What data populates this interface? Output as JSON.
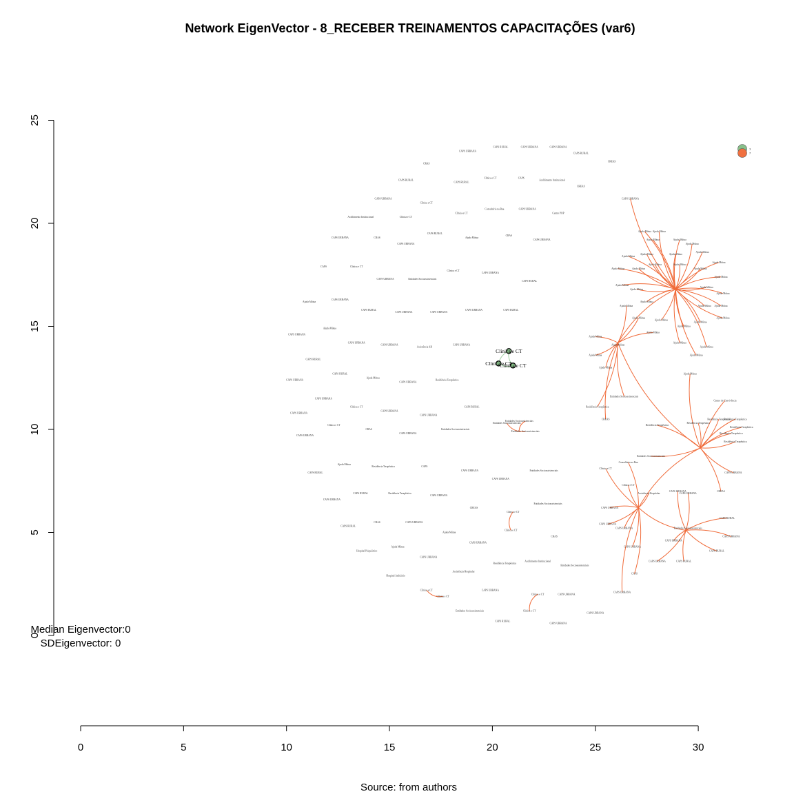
{
  "chart_data": {
    "type": "network",
    "title": "Network EigenVector - 8_RECEBER TREINAMENTOS CAPACITAÇÕES (var6)",
    "caption": "Source: from authors",
    "stats": [
      "Median Eigenvector:0",
      "SDEigenvector: 0"
    ],
    "x_axis": {
      "ticks": [
        0,
        5,
        10,
        15,
        20,
        25,
        30
      ],
      "range": [
        0,
        30
      ]
    },
    "y_axis": {
      "ticks": [
        0,
        5,
        10,
        15,
        20,
        25
      ],
      "range": [
        0,
        25
      ]
    },
    "legend": {
      "position": "top-right",
      "entries": [
        {
          "label": "1",
          "color": "#88c08a"
        },
        {
          "label": "7",
          "color": "#f07040"
        }
      ]
    },
    "colors": {
      "edge": "#f06a38",
      "cluster_edge": "#9dcf9f",
      "highlight_node_fill": "#88c08a",
      "node_stroke": "#000000"
    },
    "highlight_nodes": [
      {
        "label": "Clínica e CT",
        "x": 20.8,
        "y": 13.8
      },
      {
        "label": "Clínica e CT",
        "x": 20.3,
        "y": 13.2
      },
      {
        "label": "Clínica e CT",
        "x": 21.0,
        "y": 13.1
      }
    ],
    "nodes": [
      {
        "label": "CAPS URBANA",
        "x": 18.8,
        "y": 23.5
      },
      {
        "label": "CAPS RURAL",
        "x": 20.4,
        "y": 23.7
      },
      {
        "label": "CAPS URBANA",
        "x": 21.8,
        "y": 23.7
      },
      {
        "label": "CAPS URBANA",
        "x": 23.2,
        "y": 23.7
      },
      {
        "label": "CAPS RURAL",
        "x": 24.3,
        "y": 23.4
      },
      {
        "label": "CREAS",
        "x": 25.8,
        "y": 23.0
      },
      {
        "label": "CRAS",
        "x": 16.8,
        "y": 22.9
      },
      {
        "label": "CAPS RURAL",
        "x": 15.8,
        "y": 22.1
      },
      {
        "label": "CAPS RURAL",
        "x": 18.5,
        "y": 22.0
      },
      {
        "label": "Clínica e CT",
        "x": 19.9,
        "y": 22.2
      },
      {
        "label": "CAPS",
        "x": 21.4,
        "y": 22.2
      },
      {
        "label": "Acolhimento Institucional",
        "x": 22.9,
        "y": 22.1
      },
      {
        "label": "CREAS",
        "x": 24.3,
        "y": 21.8
      },
      {
        "label": "CAPS URBANA",
        "x": 14.7,
        "y": 21.2
      },
      {
        "label": "Clínica e CT",
        "x": 16.8,
        "y": 21.0
      },
      {
        "label": "Consultório na Rua",
        "x": 20.1,
        "y": 20.7
      },
      {
        "label": "CAPS URBANA",
        "x": 21.7,
        "y": 20.7
      },
      {
        "label": "Clínica e CT",
        "x": 18.5,
        "y": 20.5
      },
      {
        "label": "Centro POP",
        "x": 23.2,
        "y": 20.5
      },
      {
        "label": "Acolhimento Institucional",
        "x": 13.6,
        "y": 20.3
      },
      {
        "label": "Clínica e CT",
        "x": 15.8,
        "y": 20.3
      },
      {
        "label": "CAPS URBANA",
        "x": 12.6,
        "y": 19.3
      },
      {
        "label": "CRAS",
        "x": 14.4,
        "y": 19.3
      },
      {
        "label": "CAPS RURAL",
        "x": 17.2,
        "y": 19.5
      },
      {
        "label": "Ajuda Mútua",
        "x": 19.0,
        "y": 19.3
      },
      {
        "label": "CRAS",
        "x": 20.8,
        "y": 19.4
      },
      {
        "label": "CAPS URBANA",
        "x": 22.4,
        "y": 19.2
      },
      {
        "label": "CAPS URBANA",
        "x": 15.8,
        "y": 19.0
      },
      {
        "label": "CAPS",
        "x": 11.8,
        "y": 17.9
      },
      {
        "label": "Clínica e CT",
        "x": 13.4,
        "y": 17.9
      },
      {
        "label": "Clínica e CT",
        "x": 18.1,
        "y": 17.7
      },
      {
        "label": "CAPS URBANA",
        "x": 19.9,
        "y": 17.6
      },
      {
        "label": "CAPS URBANA",
        "x": 14.8,
        "y": 17.3
      },
      {
        "label": "Entidades Socioassistenciais",
        "x": 16.6,
        "y": 17.3
      },
      {
        "label": "CAPS RURAL",
        "x": 21.8,
        "y": 17.2
      },
      {
        "label": "Ajuda Mútua",
        "x": 11.1,
        "y": 16.2
      },
      {
        "label": "CAPS URBANA",
        "x": 12.6,
        "y": 16.3
      },
      {
        "label": "CAPS RURAL",
        "x": 14.0,
        "y": 15.8
      },
      {
        "label": "CAPS URBANA",
        "x": 15.7,
        "y": 15.7
      },
      {
        "label": "CAPS URBANA",
        "x": 17.4,
        "y": 15.7
      },
      {
        "label": "CAPS URBANA",
        "x": 19.1,
        "y": 15.8
      },
      {
        "label": "CAPS RURAL",
        "x": 20.9,
        "y": 15.8
      },
      {
        "label": "Ajuda Mútua",
        "x": 12.1,
        "y": 14.9
      },
      {
        "label": "CAPS URBANA",
        "x": 10.5,
        "y": 14.6
      },
      {
        "label": "CAPS URBANA",
        "x": 13.4,
        "y": 14.2
      },
      {
        "label": "CAPS URBANA",
        "x": 15.0,
        "y": 14.1
      },
      {
        "label": "Assistência AB",
        "x": 16.7,
        "y": 14.0
      },
      {
        "label": "CAPS URBANA",
        "x": 18.5,
        "y": 14.1
      },
      {
        "label": "CAPS RURAL",
        "x": 11.3,
        "y": 13.4
      },
      {
        "label": "CAPS RURAL",
        "x": 12.6,
        "y": 12.7
      },
      {
        "label": "Ajuda Mútua",
        "x": 14.2,
        "y": 12.5
      },
      {
        "label": "CAPS URBANA",
        "x": 15.9,
        "y": 12.3
      },
      {
        "label": "Residência Terapêutica",
        "x": 17.8,
        "y": 12.4
      },
      {
        "label": "CAPS URBANA",
        "x": 10.4,
        "y": 12.4
      },
      {
        "label": "CAPS URBANA",
        "x": 11.8,
        "y": 11.5
      },
      {
        "label": "Clínica e CT",
        "x": 13.4,
        "y": 11.1
      },
      {
        "label": "CAPS URBANA",
        "x": 15.0,
        "y": 10.9
      },
      {
        "label": "CAPS URBANA",
        "x": 16.9,
        "y": 10.7
      },
      {
        "label": "CAPS RURAL",
        "x": 19.0,
        "y": 11.1
      },
      {
        "label": "CAPS URBANA",
        "x": 10.6,
        "y": 10.8
      },
      {
        "label": "Clínica e CT",
        "x": 12.3,
        "y": 10.2
      },
      {
        "label": "CRAS",
        "x": 14.0,
        "y": 10.0
      },
      {
        "label": "CAPS URBANA",
        "x": 15.9,
        "y": 9.8
      },
      {
        "label": "Entidades Socioassistenciais",
        "x": 18.2,
        "y": 10.0
      },
      {
        "label": "Entidades Socioassistenciais",
        "x": 20.7,
        "y": 10.3
      },
      {
        "label": "Entidades Socioassistenciais",
        "x": 21.6,
        "y": 9.9
      },
      {
        "label": "Entidades Socioassistenciais",
        "x": 21.3,
        "y": 10.4
      },
      {
        "label": "CAPS URBANA",
        "x": 10.9,
        "y": 9.7
      },
      {
        "label": "Ajuda Mútua",
        "x": 12.8,
        "y": 8.3
      },
      {
        "label": "Residência Terapêutica",
        "x": 14.7,
        "y": 8.2
      },
      {
        "label": "CAPS",
        "x": 16.7,
        "y": 8.2
      },
      {
        "label": "CAPS URBANA",
        "x": 18.9,
        "y": 8.0
      },
      {
        "label": "Entidades Socioassistenciais",
        "x": 22.5,
        "y": 8.0
      },
      {
        "label": "CAPS RURAL",
        "x": 11.4,
        "y": 7.9
      },
      {
        "label": "CAPS URBANA",
        "x": 20.4,
        "y": 7.6
      },
      {
        "label": "CAPS RURAL",
        "x": 13.6,
        "y": 6.9
      },
      {
        "label": "Residência Terapêutica",
        "x": 15.5,
        "y": 6.9
      },
      {
        "label": "CAPS URBANA",
        "x": 17.4,
        "y": 6.8
      },
      {
        "label": "CAPS URBANA",
        "x": 12.2,
        "y": 6.6
      },
      {
        "label": "Entidades Socioassistenciais",
        "x": 22.7,
        "y": 6.4
      },
      {
        "label": "CREAS",
        "x": 19.1,
        "y": 6.2
      },
      {
        "label": "Clínica e CT",
        "x": 21.0,
        "y": 6.0
      },
      {
        "label": "CRAS",
        "x": 14.4,
        "y": 5.5
      },
      {
        "label": "CAPS URBANA",
        "x": 16.2,
        "y": 5.5
      },
      {
        "label": "CAPS RURAL",
        "x": 13.0,
        "y": 5.3
      },
      {
        "label": "Clínica e CT",
        "x": 20.9,
        "y": 5.1
      },
      {
        "label": "Ajuda Mútua",
        "x": 17.9,
        "y": 5.0
      },
      {
        "label": "CRAS",
        "x": 23.0,
        "y": 4.8
      },
      {
        "label": "CAPS URBANA",
        "x": 19.3,
        "y": 4.5
      },
      {
        "label": "Ajuda Mútua",
        "x": 15.4,
        "y": 4.3
      },
      {
        "label": "Hospital Psiquiátrico",
        "x": 13.9,
        "y": 4.1
      },
      {
        "label": "CAPS URBANA",
        "x": 16.9,
        "y": 3.8
      },
      {
        "label": "Residência Terapêutica",
        "x": 20.6,
        "y": 3.5
      },
      {
        "label": "Acolhimento Institucional",
        "x": 22.2,
        "y": 3.6
      },
      {
        "label": "Entidades Socioassistenciais",
        "x": 24.0,
        "y": 3.4
      },
      {
        "label": "Assistência Hospitalar",
        "x": 18.6,
        "y": 3.1
      },
      {
        "label": "Hospital Judiciário",
        "x": 15.3,
        "y": 2.9
      },
      {
        "label": "Clínica e CT",
        "x": 16.8,
        "y": 2.2
      },
      {
        "label": "Clínica e CT",
        "x": 17.6,
        "y": 1.9
      },
      {
        "label": "CAPS URBANA",
        "x": 19.9,
        "y": 2.2
      },
      {
        "label": "Clínica e CT",
        "x": 22.2,
        "y": 2.0
      },
      {
        "label": "CAPS URBANA",
        "x": 23.6,
        "y": 2.0
      },
      {
        "label": "Clínica e CT",
        "x": 21.8,
        "y": 1.2
      },
      {
        "label": "Entidades Socioassistenciais",
        "x": 18.9,
        "y": 1.2
      },
      {
        "label": "CAPS URBANA",
        "x": 25.0,
        "y": 1.1
      },
      {
        "label": "CAPS RURAL",
        "x": 20.5,
        "y": 0.7
      },
      {
        "label": "CAPS URBANA",
        "x": 23.2,
        "y": 0.6
      }
    ],
    "hub_nodes": [
      {
        "label": "CAPS URBANA",
        "x": 26.7,
        "y": 21.2
      },
      {
        "label": "Ajuda Mútua",
        "x": 27.4,
        "y": 19.6
      },
      {
        "label": "Ajuda Mútua",
        "x": 28.1,
        "y": 19.6
      },
      {
        "label": "Ajuda Mútua",
        "x": 27.8,
        "y": 19.2
      },
      {
        "label": "Ajuda Mútua",
        "x": 29.1,
        "y": 19.2
      },
      {
        "label": "Ajuda Mútua",
        "x": 29.7,
        "y": 19.0
      },
      {
        "label": "Ajuda Mútua",
        "x": 27.5,
        "y": 18.5
      },
      {
        "label": "Ajuda Mútua",
        "x": 26.6,
        "y": 18.4
      },
      {
        "label": "Ajuda Mútua",
        "x": 28.9,
        "y": 18.5
      },
      {
        "label": "Ajuda Mútua",
        "x": 30.2,
        "y": 18.6
      },
      {
        "label": "Ajuda Mútua",
        "x": 27.9,
        "y": 18.0
      },
      {
        "label": "Ajuda Mútua",
        "x": 29.1,
        "y": 18.0
      },
      {
        "label": "Ajuda Mútua",
        "x": 31.0,
        "y": 18.1
      },
      {
        "label": "Ajuda Mútua",
        "x": 26.1,
        "y": 17.8
      },
      {
        "label": "Ajuda Mútua",
        "x": 27.1,
        "y": 17.8
      },
      {
        "label": "Ajuda Mútua",
        "x": 30.1,
        "y": 17.8
      },
      {
        "label": "Ajuda Mútua",
        "x": 31.1,
        "y": 17.4
      },
      {
        "label": "Ajuda Mútua",
        "x": 26.3,
        "y": 17.0
      },
      {
        "label": "Ajuda Mútua",
        "x": 27.0,
        "y": 16.8
      },
      {
        "label": "Ajuda Mútua",
        "x": 30.4,
        "y": 16.9
      },
      {
        "label": "Ajuda Mútua",
        "x": 31.2,
        "y": 16.6
      },
      {
        "label": "Ajuda Mútua",
        "x": 27.5,
        "y": 16.2
      },
      {
        "label": "Ajuda Mútua",
        "x": 30.3,
        "y": 16.0
      },
      {
        "label": "Ajuda Mútua",
        "x": 26.5,
        "y": 16.0
      },
      {
        "label": "Ajuda Mútua",
        "x": 31.1,
        "y": 16.0
      },
      {
        "label": "Ajuda Mútua",
        "x": 27.1,
        "y": 15.4
      },
      {
        "label": "Ajuda Mútua",
        "x": 28.2,
        "y": 15.3
      },
      {
        "label": "Ajuda Mútua",
        "x": 29.3,
        "y": 15.0
      },
      {
        "label": "Ajuda Mútua",
        "x": 30.1,
        "y": 15.2
      },
      {
        "label": "Ajuda Mútua",
        "x": 31.2,
        "y": 15.4
      },
      {
        "label": "Ajuda Mútua",
        "x": 27.8,
        "y": 14.7
      },
      {
        "label": "Ajuda Mútua",
        "x": 25.0,
        "y": 14.5
      },
      {
        "label": "Ajuda Mútua",
        "x": 26.1,
        "y": 14.1
      },
      {
        "label": "Ajuda Mútua",
        "x": 29.1,
        "y": 14.2
      },
      {
        "label": "Ajuda Mútua",
        "x": 30.4,
        "y": 14.0
      },
      {
        "label": "Ajuda Mútua",
        "x": 29.9,
        "y": 13.6
      },
      {
        "label": "Ajuda Mútua",
        "x": 25.0,
        "y": 13.6
      },
      {
        "label": "Ajuda Mútua",
        "x": 25.5,
        "y": 13.0
      },
      {
        "label": "Ajuda Mútua",
        "x": 29.6,
        "y": 12.7
      },
      {
        "label": "Entidades Socioassistenciais",
        "x": 26.4,
        "y": 11.6
      },
      {
        "label": "Residência Terapêutica",
        "x": 25.1,
        "y": 11.1
      },
      {
        "label": "CREAS",
        "x": 25.5,
        "y": 10.5
      },
      {
        "label": "Centro de Convivência",
        "x": 31.3,
        "y": 11.4
      },
      {
        "label": "Residência Terapêutica",
        "x": 31.0,
        "y": 10.5
      },
      {
        "label": "Residência Terapêutica",
        "x": 31.8,
        "y": 10.5
      },
      {
        "label": "Residência Terapêutica",
        "x": 30.0,
        "y": 10.3
      },
      {
        "label": "Residência Terapêutica",
        "x": 32.1,
        "y": 10.1
      },
      {
        "label": "Residência Terapêutica",
        "x": 28.0,
        "y": 10.2
      },
      {
        "label": "Residência Terapêutica",
        "x": 31.6,
        "y": 9.8
      },
      {
        "label": "Residência Terapêutica",
        "x": 31.8,
        "y": 9.4
      },
      {
        "label": "Entidades Socioassistenciais",
        "x": 27.7,
        "y": 8.7
      },
      {
        "label": "Consultório na Rua",
        "x": 26.6,
        "y": 8.4
      },
      {
        "label": "Clínica e CT",
        "x": 25.5,
        "y": 8.1
      },
      {
        "label": "CAPS URBANA",
        "x": 31.7,
        "y": 7.9
      },
      {
        "label": "Clínica e CT",
        "x": 26.6,
        "y": 7.3
      },
      {
        "label": "Assistência Hospitalar",
        "x": 27.6,
        "y": 6.9
      },
      {
        "label": "CAPS URBANA",
        "x": 29.0,
        "y": 7.0
      },
      {
        "label": "CAPS URBANA",
        "x": 29.5,
        "y": 6.9
      },
      {
        "label": "CREAS",
        "x": 31.1,
        "y": 7.0
      },
      {
        "label": "CAPS URBANA",
        "x": 25.7,
        "y": 6.2
      },
      {
        "label": "CAPS URBANA",
        "x": 25.6,
        "y": 5.4
      },
      {
        "label": "CAPS URBANA",
        "x": 26.4,
        "y": 5.2
      },
      {
        "label": "CAPS RURAL",
        "x": 31.4,
        "y": 5.7
      },
      {
        "label": "Entidades Socioassistenciais",
        "x": 29.5,
        "y": 5.2
      },
      {
        "label": "CAPS URBANA",
        "x": 31.6,
        "y": 4.8
      },
      {
        "label": "CAPS URBANA",
        "x": 28.8,
        "y": 4.6
      },
      {
        "label": "CAPS URBANA",
        "x": 26.8,
        "y": 4.3
      },
      {
        "label": "CAPS RURAL",
        "x": 30.9,
        "y": 4.1
      },
      {
        "label": "CAPS URBANA",
        "x": 28.0,
        "y": 3.6
      },
      {
        "label": "CAPS RURAL",
        "x": 29.3,
        "y": 3.6
      },
      {
        "label": "CAPS",
        "x": 26.9,
        "y": 3.0
      },
      {
        "label": "CAPS URBANA",
        "x": 26.3,
        "y": 2.1
      }
    ],
    "hubs": [
      {
        "x": 28.9,
        "y": 16.8
      },
      {
        "x": 26.1,
        "y": 14.2
      },
      {
        "x": 30.1,
        "y": 9.1
      },
      {
        "x": 27.1,
        "y": 6.2
      },
      {
        "x": 29.4,
        "y": 5.1
      }
    ],
    "extra_edges": [
      [
        21.6,
        10.4,
        21.3,
        9.9
      ],
      [
        20.7,
        10.3,
        21.6,
        9.9
      ],
      [
        16.8,
        2.2,
        17.6,
        1.9
      ],
      [
        21.0,
        6.0,
        20.9,
        5.1
      ],
      [
        22.2,
        2.0,
        21.8,
        1.2
      ]
    ]
  }
}
